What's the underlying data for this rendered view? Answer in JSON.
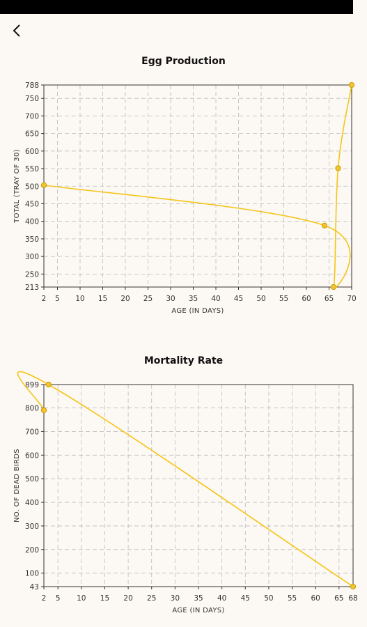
{
  "header": {
    "back_icon": "chevron-left-icon"
  },
  "colors": {
    "background": "#fcf8f3",
    "line": "#f5c518",
    "marker": "#f4c430",
    "marker_stroke": "#c99a00",
    "grid": "#bbbbbb",
    "axis": "#333333"
  },
  "chart_data": [
    {
      "type": "line",
      "title": "Egg Production",
      "xlabel": "AGE (IN DAYS)",
      "ylabel": "TOTAL (TRAY OF 30)",
      "xlim": [
        2,
        70
      ],
      "ylim": [
        213,
        788
      ],
      "x_ticks": [
        2,
        5,
        10,
        15,
        20,
        25,
        30,
        35,
        40,
        45,
        50,
        55,
        60,
        65,
        70
      ],
      "x_tick_labels": [
        "2",
        "5",
        "10",
        "15",
        "20",
        "25",
        "30",
        "35",
        "40",
        "45",
        "50",
        "55",
        "60",
        "65",
        "70"
      ],
      "y_ticks": [
        213,
        250,
        300,
        350,
        400,
        450,
        500,
        550,
        600,
        650,
        700,
        750,
        788
      ],
      "y_tick_labels": [
        "213",
        "250",
        "300",
        "350",
        "400",
        "450",
        "500",
        "550",
        "600",
        "650",
        "700",
        "750",
        "788"
      ],
      "grid": true,
      "series": [
        {
          "points": [
            {
              "x": 2,
              "y": 503
            },
            {
              "x": 64,
              "y": 388
            },
            {
              "x": 66,
              "y": 213
            },
            {
              "x": 67,
              "y": 551
            },
            {
              "x": 70,
              "y": 788
            }
          ]
        }
      ]
    },
    {
      "type": "line",
      "title": "Mortality Rate",
      "xlabel": "AGE (IN DAYS)",
      "ylabel": "NO. OF DEAD BIRDS",
      "xlim": [
        2,
        68
      ],
      "ylim": [
        43,
        899
      ],
      "x_ticks": [
        2,
        5,
        10,
        15,
        20,
        25,
        30,
        35,
        40,
        45,
        50,
        55,
        60,
        65,
        68
      ],
      "x_tick_labels": [
        "2",
        "5",
        "10",
        "15",
        "20",
        "25",
        "30",
        "35",
        "40",
        "45",
        "50",
        "55",
        "60",
        "65",
        "68"
      ],
      "y_ticks": [
        43,
        100,
        200,
        300,
        400,
        500,
        600,
        700,
        800,
        899
      ],
      "y_tick_labels": [
        "43",
        "100",
        "200",
        "300",
        "400",
        "500",
        "600",
        "700",
        "800",
        "899"
      ],
      "grid": true,
      "series": [
        {
          "points": [
            {
              "x": 2,
              "y": 790
            },
            {
              "x": 3,
              "y": 899
            },
            {
              "x": 68,
              "y": 43
            }
          ]
        }
      ]
    }
  ]
}
